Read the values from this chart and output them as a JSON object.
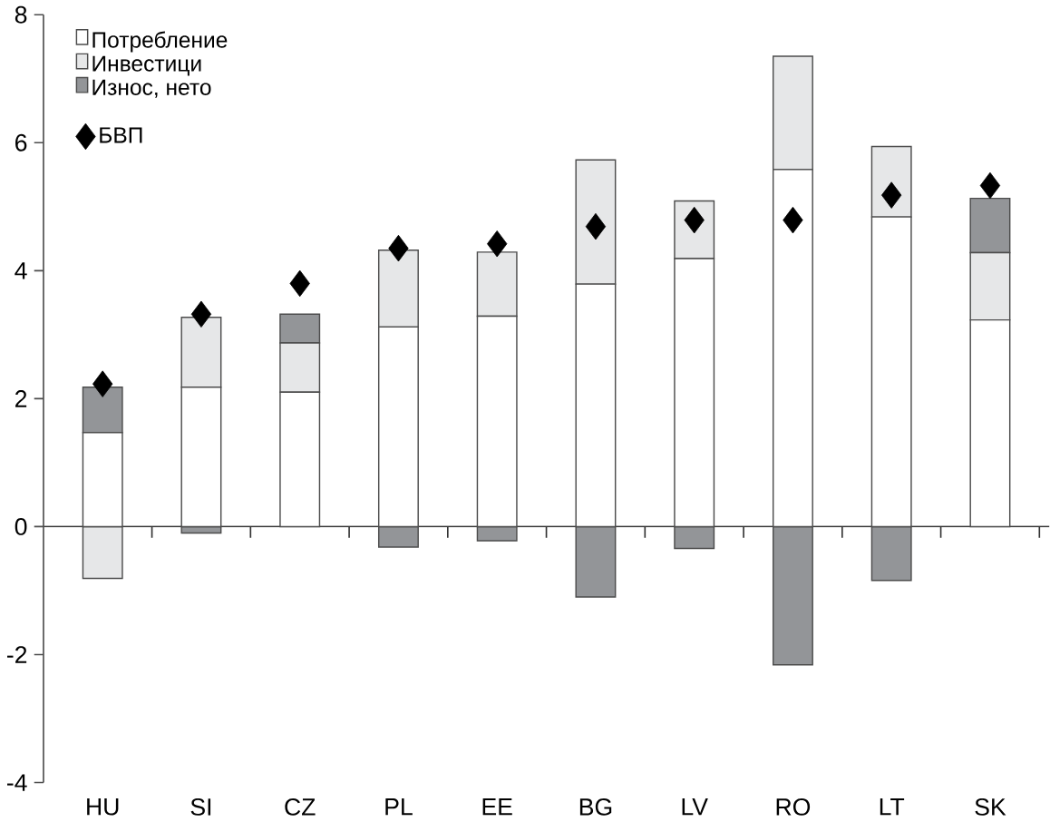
{
  "chart_data": {
    "type": "bar",
    "stacked": true,
    "categories": [
      "HU",
      "SI",
      "CZ",
      "PL",
      "EE",
      "BG",
      "LV",
      "RO",
      "LT",
      "SK"
    ],
    "series": [
      {
        "name": "Потребление",
        "color": "#ffffff",
        "values": [
          1.47,
          2.18,
          2.1,
          3.12,
          3.29,
          3.79,
          4.19,
          5.58,
          4.84,
          3.23
        ]
      },
      {
        "name": "Инвестици",
        "color": "#e6e7e8",
        "values": [
          -0.81,
          1.09,
          0.77,
          1.2,
          1.0,
          1.94,
          0.9,
          1.77,
          1.1,
          1.05
        ]
      },
      {
        "name": "Износ, нето",
        "color": "#939598",
        "values": [
          0.71,
          -0.1,
          0.45,
          -0.32,
          -0.22,
          -1.1,
          -0.34,
          -2.16,
          -0.84,
          0.85
        ]
      },
      {
        "name": "БВП",
        "type": "scatter",
        "marker": "diamond",
        "color": "#000000",
        "values": [
          2.23,
          3.32,
          3.8,
          4.35,
          4.42,
          4.69,
          4.79,
          4.79,
          5.18,
          5.33
        ]
      }
    ],
    "ylim": [
      -4,
      8
    ],
    "yticks": [
      -4,
      -2,
      0,
      2,
      4,
      6,
      8
    ],
    "legend": "top left"
  }
}
